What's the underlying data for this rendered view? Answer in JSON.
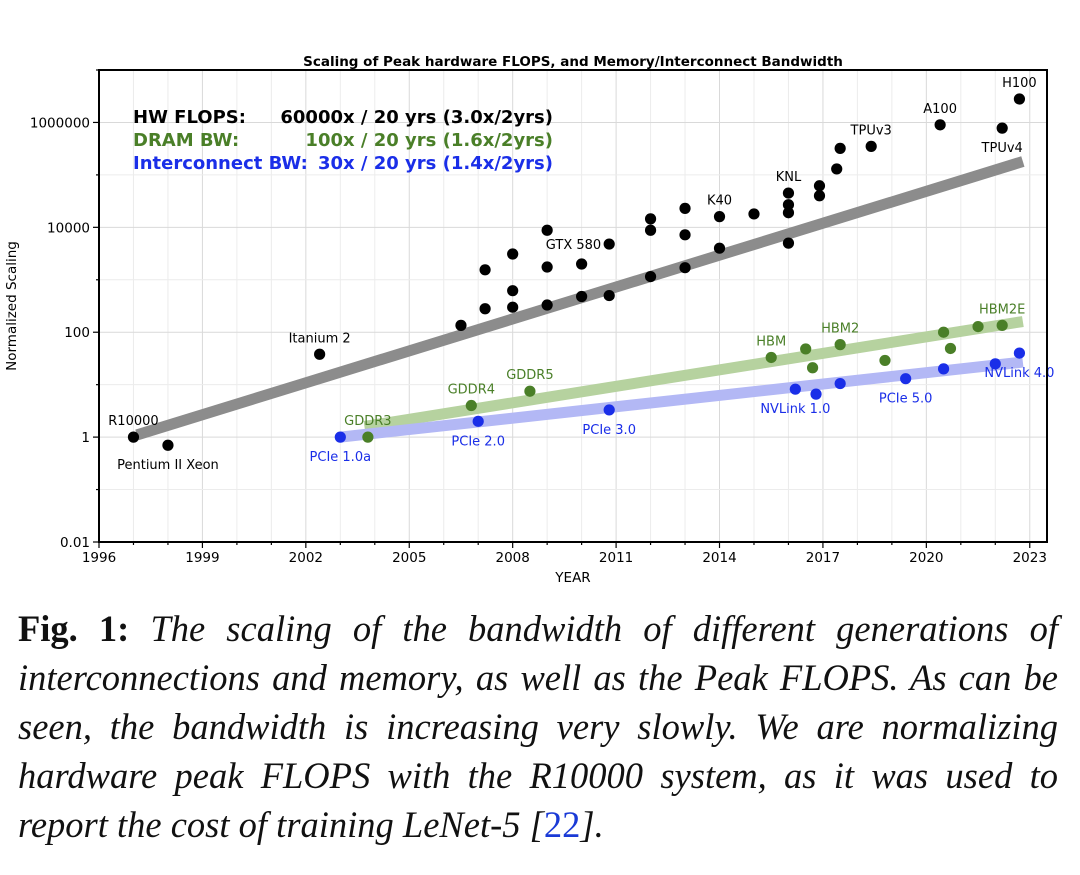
{
  "chart_data": {
    "type": "scatter",
    "title": "Scaling of Peak hardware FLOPS, and Memory/Interconnect Bandwidth",
    "xlabel": "YEAR",
    "ylabel": "Normalized Scaling",
    "yscale": "log",
    "xlim": [
      1996,
      2023.5
    ],
    "ylim": [
      0.01,
      10000000
    ],
    "xticks": [
      1996,
      1999,
      2002,
      2005,
      2008,
      2011,
      2014,
      2017,
      2020,
      2023
    ],
    "xtick_labels": [
      "1996",
      "1999",
      "2002",
      "2005",
      "2008",
      "2011",
      "2014",
      "2017",
      "2020",
      "2023"
    ],
    "yticks": [
      0.01,
      1,
      100,
      10000,
      1000000
    ],
    "ytick_labels": [
      "0.01",
      "1",
      "100",
      "10000",
      "1000000"
    ],
    "grid": true,
    "legend_text": [
      {
        "label": "HW FLOPS:",
        "value": "60000x / 20 yrs (3.0x/2yrs)",
        "color": "#000000"
      },
      {
        "label": "DRAM BW:",
        "value": "100x / 20 yrs (1.6x/2yrs)",
        "color": "#4a7f28"
      },
      {
        "label": "Interconnect BW:",
        "value": "30x / 20 yrs (1.4x/2yrs)",
        "color": "#1a2ee8"
      }
    ],
    "series": [
      {
        "name": "HW FLOPS",
        "color": "#000000",
        "trend": {
          "x": [
            1997.1,
            2022.8
          ],
          "y": [
            1.1,
            180000
          ],
          "color": "#8c8c8c"
        },
        "points": [
          {
            "x": 1997.0,
            "y": 1.0,
            "label": "R10000",
            "label_pos": "above"
          },
          {
            "x": 1998.0,
            "y": 0.7,
            "label": "Pentium II Xeon",
            "label_pos": "below"
          },
          {
            "x": 2002.4,
            "y": 38,
            "label": "Itanium 2",
            "label_pos": "above"
          },
          {
            "x": 2006.5,
            "y": 135
          },
          {
            "x": 2007.2,
            "y": 1550
          },
          {
            "x": 2007.2,
            "y": 280
          },
          {
            "x": 2008.0,
            "y": 3100
          },
          {
            "x": 2008.0,
            "y": 620
          },
          {
            "x": 2008.0,
            "y": 300
          },
          {
            "x": 2009.0,
            "y": 8800
          },
          {
            "x": 2009.0,
            "y": 1750
          },
          {
            "x": 2009.0,
            "y": 330
          },
          {
            "x": 2010.0,
            "y": 2000
          },
          {
            "x": 2010.0,
            "y": 480
          },
          {
            "x": 2010.8,
            "y": 4800,
            "label": "GTX 580",
            "label_pos": "left"
          },
          {
            "x": 2010.8,
            "y": 500
          },
          {
            "x": 2012.0,
            "y": 14500
          },
          {
            "x": 2012.0,
            "y": 8800
          },
          {
            "x": 2012.0,
            "y": 1150
          },
          {
            "x": 2013.0,
            "y": 23000
          },
          {
            "x": 2013.0,
            "y": 7200
          },
          {
            "x": 2013.0,
            "y": 1700
          },
          {
            "x": 2014.0,
            "y": 16000,
            "label": "K40",
            "label_pos": "above"
          },
          {
            "x": 2014.0,
            "y": 4000
          },
          {
            "x": 2015.0,
            "y": 18000
          },
          {
            "x": 2016.0,
            "y": 45000,
            "label": "KNL",
            "label_pos": "above"
          },
          {
            "x": 2016.0,
            "y": 27000
          },
          {
            "x": 2016.0,
            "y": 19000
          },
          {
            "x": 2016.0,
            "y": 5000
          },
          {
            "x": 2016.9,
            "y": 62000
          },
          {
            "x": 2016.9,
            "y": 40000
          },
          {
            "x": 2017.4,
            "y": 130000
          },
          {
            "x": 2017.5,
            "y": 320000
          },
          {
            "x": 2018.4,
            "y": 350000,
            "label": "TPUv3",
            "label_pos": "above"
          },
          {
            "x": 2020.4,
            "y": 900000,
            "label": "A100",
            "label_pos": "above"
          },
          {
            "x": 2022.2,
            "y": 780000,
            "label": "TPUv4",
            "label_pos": "below"
          },
          {
            "x": 2022.7,
            "y": 2800000,
            "label": "H100",
            "label_pos": "above"
          }
        ]
      },
      {
        "name": "DRAM BW",
        "color": "#4a7f28",
        "trend": {
          "x": [
            2003.7,
            2022.8
          ],
          "y": [
            1.6,
            160
          ],
          "color": "#b6d29f"
        },
        "points": [
          {
            "x": 2003.8,
            "y": 1.0,
            "label": "GDDR3",
            "label_pos": "above"
          },
          {
            "x": 2006.8,
            "y": 4.0,
            "label": "GDDR4",
            "label_pos": "above"
          },
          {
            "x": 2008.5,
            "y": 7.5,
            "label": "GDDR5",
            "label_pos": "above"
          },
          {
            "x": 2015.5,
            "y": 33,
            "label": "HBM",
            "label_pos": "above"
          },
          {
            "x": 2016.5,
            "y": 48
          },
          {
            "x": 2016.7,
            "y": 21
          },
          {
            "x": 2017.5,
            "y": 58,
            "label": "HBM2",
            "label_pos": "above"
          },
          {
            "x": 2018.8,
            "y": 29
          },
          {
            "x": 2020.5,
            "y": 100
          },
          {
            "x": 2020.7,
            "y": 49
          },
          {
            "x": 2021.5,
            "y": 128
          },
          {
            "x": 2022.2,
            "y": 135,
            "label": "HBM2E",
            "label_pos": "above"
          }
        ]
      },
      {
        "name": "Interconnect BW",
        "color": "#1a2ee8",
        "trend": {
          "x": [
            2003.0,
            2022.8
          ],
          "y": [
            1.0,
            27
          ],
          "color": "#b3b8f5"
        },
        "points": [
          {
            "x": 2003.0,
            "y": 1.0,
            "label": "PCIe 1.0a",
            "label_pos": "below"
          },
          {
            "x": 2007.0,
            "y": 2.0,
            "label": "PCIe 2.0",
            "label_pos": "below"
          },
          {
            "x": 2010.8,
            "y": 3.3,
            "label": "PCIe 3.0",
            "label_pos": "below"
          },
          {
            "x": 2016.2,
            "y": 8.2,
            "label": "NVLink 1.0",
            "label_pos": "below"
          },
          {
            "x": 2016.8,
            "y": 6.6
          },
          {
            "x": 2017.5,
            "y": 10.5
          },
          {
            "x": 2019.4,
            "y": 13,
            "label": "PCIe 5.0",
            "label_pos": "below"
          },
          {
            "x": 2020.5,
            "y": 20
          },
          {
            "x": 2022.0,
            "y": 25
          },
          {
            "x": 2022.7,
            "y": 40,
            "label": "NVLink 4.0",
            "label_pos": "below"
          }
        ]
      }
    ]
  },
  "caption": {
    "label": "Fig. 1:",
    "text": "The scaling of the bandwidth of different generations of interconnections and memory, as well as the Peak FLOPS. As can be seen, the bandwidth is increasing very slowly. We are normalizing hardware peak FLOPS with the R10000 system, as it was used to report the cost of training LeNet-5 [",
    "ref": "22",
    "tail": "]."
  }
}
